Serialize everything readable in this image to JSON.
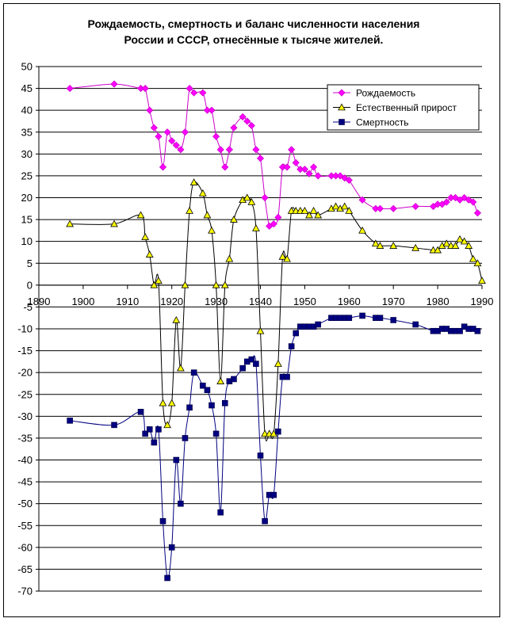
{
  "chart_data": {
    "type": "line",
    "title": [
      "Рождаемость, смертность и баланс численности населения",
      "России и СССР, отнесённые к тысяче жителей."
    ],
    "xlim": [
      1890,
      1990
    ],
    "ylim": [
      -70,
      50
    ],
    "xticks": [
      1890,
      1900,
      1910,
      1920,
      1930,
      1940,
      1950,
      1960,
      1970,
      1980,
      1990
    ],
    "yticks": [
      50,
      45,
      40,
      35,
      30,
      25,
      20,
      15,
      10,
      5,
      0,
      -5,
      -10,
      -15,
      -20,
      -25,
      -30,
      -35,
      -40,
      -45,
      -50,
      -55,
      -60,
      -65,
      -70
    ],
    "grid": "horizontal",
    "legend_position": "top-right",
    "series": [
      {
        "name": "Рождаемость",
        "color": "#CC00CC",
        "marker": "diamond",
        "marker_color": "#FF00FF",
        "points": [
          [
            1897,
            45
          ],
          [
            1907,
            46
          ],
          [
            1913,
            45
          ],
          [
            1914,
            45
          ],
          [
            1915,
            40
          ],
          [
            1916,
            36
          ],
          [
            1917,
            34
          ],
          [
            1918,
            27
          ],
          [
            1919,
            35
          ],
          [
            1920,
            33
          ],
          [
            1921,
            32
          ],
          [
            1922,
            31
          ],
          [
            1923,
            35
          ],
          [
            1924,
            45
          ],
          [
            1925,
            44
          ],
          [
            1927,
            44
          ],
          [
            1928,
            40
          ],
          [
            1929,
            40
          ],
          [
            1930,
            34
          ],
          [
            1931,
            31
          ],
          [
            1932,
            27
          ],
          [
            1933,
            31
          ],
          [
            1934,
            36
          ],
          [
            1936,
            38.5
          ],
          [
            1937,
            37.5
          ],
          [
            1938,
            36.5
          ],
          [
            1939,
            31
          ],
          [
            1940,
            29
          ],
          [
            1941,
            20
          ],
          [
            1942,
            13.5
          ],
          [
            1943,
            14
          ],
          [
            1944,
            15.5
          ],
          [
            1945,
            27
          ],
          [
            1946,
            27
          ],
          [
            1947,
            31
          ],
          [
            1948,
            28
          ],
          [
            1949,
            26.5
          ],
          [
            1950,
            26.5
          ],
          [
            1951,
            25.5
          ],
          [
            1952,
            27
          ],
          [
            1953,
            25
          ],
          [
            1956,
            25
          ],
          [
            1957,
            25
          ],
          [
            1958,
            25
          ],
          [
            1959,
            24.5
          ],
          [
            1960,
            24
          ],
          [
            1963,
            19.5
          ],
          [
            1966,
            17.5
          ],
          [
            1967,
            17.5
          ],
          [
            1970,
            17.5
          ],
          [
            1975,
            18
          ],
          [
            1979,
            18
          ],
          [
            1980,
            18.5
          ],
          [
            1981,
            18.5
          ],
          [
            1982,
            19
          ],
          [
            1983,
            20
          ],
          [
            1984,
            20
          ],
          [
            1985,
            19.5
          ],
          [
            1986,
            20
          ],
          [
            1987,
            19.5
          ],
          [
            1988,
            19
          ],
          [
            1989,
            16.5
          ]
        ]
      },
      {
        "name": "Естественный прирост",
        "color": "#000000",
        "marker": "triangle",
        "marker_color": "#FFFF00",
        "points": [
          [
            1897,
            14
          ],
          [
            1907,
            14
          ],
          [
            1913,
            16
          ],
          [
            1914,
            11
          ],
          [
            1915,
            7
          ],
          [
            1916,
            0
          ],
          [
            1917,
            1
          ],
          [
            1918,
            -27
          ],
          [
            1919,
            -32
          ],
          [
            1920,
            -27
          ],
          [
            1921,
            -8
          ],
          [
            1922,
            -19
          ],
          [
            1923,
            0
          ],
          [
            1924,
            17
          ],
          [
            1925,
            23.5
          ],
          [
            1927,
            21
          ],
          [
            1928,
            16
          ],
          [
            1929,
            12.5
          ],
          [
            1930,
            0
          ],
          [
            1931,
            -22
          ],
          [
            1932,
            0
          ],
          [
            1933,
            6
          ],
          [
            1934,
            15
          ],
          [
            1936,
            19.5
          ],
          [
            1937,
            20
          ],
          [
            1938,
            19
          ],
          [
            1939,
            13
          ],
          [
            1940,
            -10.5
          ],
          [
            1941,
            -34
          ],
          [
            1942,
            -34
          ],
          [
            1943,
            -34
          ],
          [
            1944,
            -18
          ],
          [
            1945,
            6.5
          ],
          [
            1946,
            6
          ],
          [
            1947,
            17
          ],
          [
            1948,
            17
          ],
          [
            1949,
            17
          ],
          [
            1950,
            17
          ],
          [
            1951,
            16
          ],
          [
            1952,
            17
          ],
          [
            1953,
            16
          ],
          [
            1956,
            17.5
          ],
          [
            1957,
            18
          ],
          [
            1958,
            17.5
          ],
          [
            1959,
            18
          ],
          [
            1960,
            17
          ],
          [
            1963,
            12.5
          ],
          [
            1966,
            9.5
          ],
          [
            1967,
            9
          ],
          [
            1970,
            9
          ],
          [
            1975,
            8.5
          ],
          [
            1979,
            8
          ],
          [
            1980,
            8
          ],
          [
            1981,
            9
          ],
          [
            1982,
            9.5
          ],
          [
            1983,
            9
          ],
          [
            1984,
            9
          ],
          [
            1985,
            10.5
          ],
          [
            1986,
            10
          ],
          [
            1987,
            9
          ],
          [
            1988,
            6
          ],
          [
            1989,
            5
          ],
          [
            1990,
            1
          ]
        ]
      },
      {
        "name": "Смертность",
        "color": "#000080",
        "marker": "square",
        "marker_color": "#000080",
        "points": [
          [
            1897,
            -31
          ],
          [
            1907,
            -32
          ],
          [
            1913,
            -29
          ],
          [
            1914,
            -34
          ],
          [
            1915,
            -33
          ],
          [
            1916,
            -36
          ],
          [
            1917,
            -33
          ],
          [
            1918,
            -54
          ],
          [
            1919,
            -67
          ],
          [
            1920,
            -60
          ],
          [
            1921,
            -40
          ],
          [
            1922,
            -50
          ],
          [
            1923,
            -35
          ],
          [
            1924,
            -28
          ],
          [
            1925,
            -20
          ],
          [
            1927,
            -23
          ],
          [
            1928,
            -24
          ],
          [
            1929,
            -27.5
          ],
          [
            1930,
            -34
          ],
          [
            1931,
            -52
          ],
          [
            1932,
            -27
          ],
          [
            1933,
            -22
          ],
          [
            1934,
            -21.5
          ],
          [
            1936,
            -19
          ],
          [
            1937,
            -17.5
          ],
          [
            1938,
            -17
          ],
          [
            1939,
            -18
          ],
          [
            1940,
            -39
          ],
          [
            1941,
            -54
          ],
          [
            1942,
            -48
          ],
          [
            1943,
            -48
          ],
          [
            1944,
            -33.5
          ],
          [
            1945,
            -21
          ],
          [
            1946,
            -21
          ],
          [
            1947,
            -14
          ],
          [
            1948,
            -11
          ],
          [
            1949,
            -9.5
          ],
          [
            1950,
            -9.5
          ],
          [
            1951,
            -9.5
          ],
          [
            1952,
            -9.5
          ],
          [
            1953,
            -9
          ],
          [
            1956,
            -7.5
          ],
          [
            1957,
            -7.5
          ],
          [
            1958,
            -7.5
          ],
          [
            1959,
            -7.5
          ],
          [
            1960,
            -7.5
          ],
          [
            1963,
            -7
          ],
          [
            1966,
            -7.5
          ],
          [
            1967,
            -7.5
          ],
          [
            1970,
            -8
          ],
          [
            1975,
            -9
          ],
          [
            1979,
            -10.5
          ],
          [
            1980,
            -10.5
          ],
          [
            1981,
            -10
          ],
          [
            1982,
            -10
          ],
          [
            1983,
            -10.5
          ],
          [
            1984,
            -10.5
          ],
          [
            1985,
            -10.5
          ],
          [
            1986,
            -9.5
          ],
          [
            1987,
            -10
          ],
          [
            1988,
            -10
          ],
          [
            1989,
            -10.5
          ]
        ]
      }
    ]
  }
}
